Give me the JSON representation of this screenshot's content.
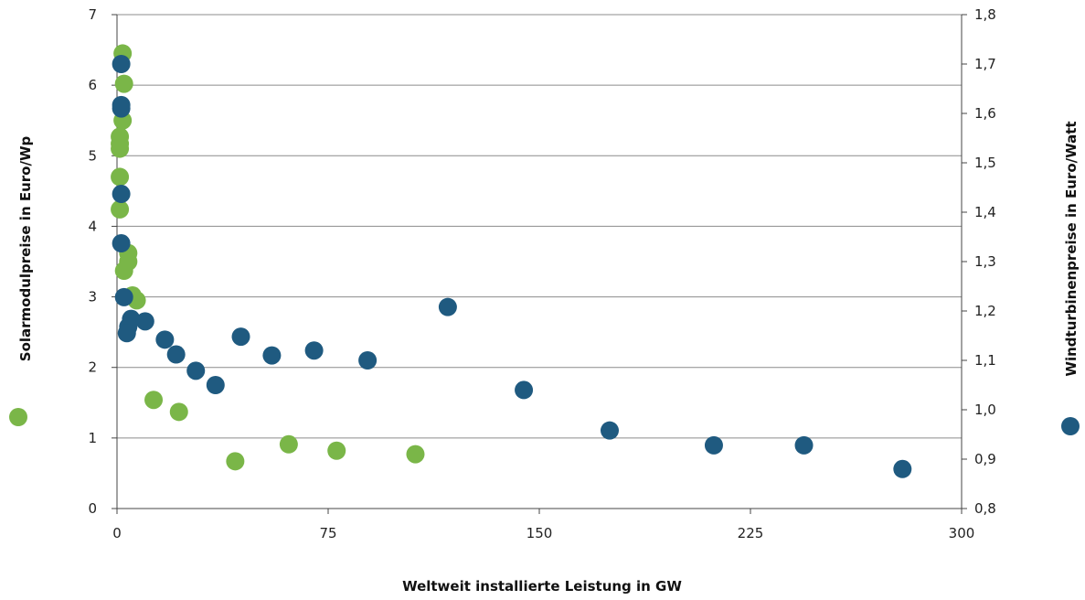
{
  "chart_data": {
    "type": "scatter",
    "xlabel": "Weltweit installierte Leistung in GW",
    "ylabel_left": "Solarmodulpreise in Euro/Wp",
    "ylabel_right": "Windturbinenpreise in Euro/Watt",
    "xlim": [
      0,
      300
    ],
    "ylim_left": [
      0,
      7
    ],
    "ylim_right": [
      0.8,
      1.8
    ],
    "x_ticks": [
      "0",
      "75",
      "150",
      "225",
      "300"
    ],
    "y_ticks_left": [
      "0",
      "1",
      "2",
      "3",
      "4",
      "5",
      "6",
      "7"
    ],
    "y_ticks_right": [
      "0,8",
      "0,9",
      "1,0",
      "1,1",
      "1,2",
      "1,3",
      "1,4",
      "1,5",
      "1,6",
      "1,7",
      "1,8"
    ],
    "grid": "horizontal",
    "colors": {
      "solar": "#7ab648",
      "wind": "#1f5a80"
    },
    "series": [
      {
        "axis": "left",
        "color": "#7ab648",
        "points": [
          [
            2.0,
            6.45
          ],
          [
            2.5,
            6.02
          ],
          [
            2.0,
            5.5
          ],
          [
            1.0,
            5.27
          ],
          [
            1.0,
            5.17
          ],
          [
            1.0,
            5.1
          ],
          [
            1.0,
            4.7
          ],
          [
            1.0,
            4.24
          ],
          [
            4.0,
            3.62
          ],
          [
            4.0,
            3.5
          ],
          [
            2.5,
            3.37
          ],
          [
            5.5,
            3.02
          ],
          [
            7.0,
            2.95
          ],
          [
            13.0,
            1.54
          ],
          [
            22.0,
            1.37
          ],
          [
            42.0,
            0.67
          ],
          [
            61.0,
            0.91
          ],
          [
            78.0,
            0.82
          ],
          [
            106.0,
            0.77
          ]
        ]
      },
      {
        "axis": "right",
        "color": "#1f5a80",
        "points": [
          [
            1.5,
            1.7
          ],
          [
            1.5,
            1.617
          ],
          [
            1.5,
            1.61
          ],
          [
            1.5,
            1.437
          ],
          [
            1.5,
            1.337
          ],
          [
            2.5,
            1.228
          ],
          [
            5.0,
            1.184
          ],
          [
            4.0,
            1.168
          ],
          [
            3.5,
            1.155
          ],
          [
            10.0,
            1.179
          ],
          [
            17.0,
            1.142
          ],
          [
            21.0,
            1.112
          ],
          [
            28.0,
            1.079
          ],
          [
            35.0,
            1.05
          ],
          [
            44.0,
            1.148
          ],
          [
            55.0,
            1.11
          ],
          [
            70.0,
            1.12
          ],
          [
            89.0,
            1.1
          ],
          [
            117.5,
            1.208
          ],
          [
            144.5,
            1.04
          ],
          [
            175.0,
            0.958
          ],
          [
            212.0,
            0.928
          ],
          [
            244.0,
            0.928
          ],
          [
            279.0,
            0.88
          ]
        ]
      }
    ]
  }
}
